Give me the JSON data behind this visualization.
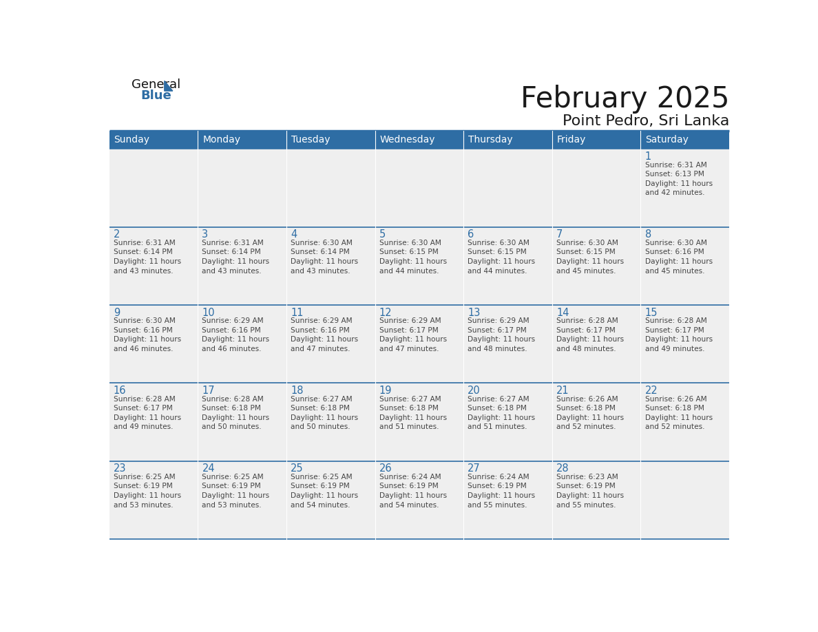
{
  "title": "February 2025",
  "subtitle": "Point Pedro, Sri Lanka",
  "header_bg_color": "#2E6DA4",
  "header_text_color": "#FFFFFF",
  "cell_bg_color": "#EFEFEF",
  "day_number_color": "#2E6DA4",
  "text_color": "#444444",
  "sep_line_color": "#2E6DA4",
  "days_of_week": [
    "Sunday",
    "Monday",
    "Tuesday",
    "Wednesday",
    "Thursday",
    "Friday",
    "Saturday"
  ],
  "calendar_data": [
    [
      null,
      null,
      null,
      null,
      null,
      null,
      {
        "day": 1,
        "sunrise": "6:31 AM",
        "sunset": "6:13 PM",
        "daylight": "11 hours\nand 42 minutes."
      }
    ],
    [
      {
        "day": 2,
        "sunrise": "6:31 AM",
        "sunset": "6:14 PM",
        "daylight": "11 hours\nand 43 minutes."
      },
      {
        "day": 3,
        "sunrise": "6:31 AM",
        "sunset": "6:14 PM",
        "daylight": "11 hours\nand 43 minutes."
      },
      {
        "day": 4,
        "sunrise": "6:30 AM",
        "sunset": "6:14 PM",
        "daylight": "11 hours\nand 43 minutes."
      },
      {
        "day": 5,
        "sunrise": "6:30 AM",
        "sunset": "6:15 PM",
        "daylight": "11 hours\nand 44 minutes."
      },
      {
        "day": 6,
        "sunrise": "6:30 AM",
        "sunset": "6:15 PM",
        "daylight": "11 hours\nand 44 minutes."
      },
      {
        "day": 7,
        "sunrise": "6:30 AM",
        "sunset": "6:15 PM",
        "daylight": "11 hours\nand 45 minutes."
      },
      {
        "day": 8,
        "sunrise": "6:30 AM",
        "sunset": "6:16 PM",
        "daylight": "11 hours\nand 45 minutes."
      }
    ],
    [
      {
        "day": 9,
        "sunrise": "6:30 AM",
        "sunset": "6:16 PM",
        "daylight": "11 hours\nand 46 minutes."
      },
      {
        "day": 10,
        "sunrise": "6:29 AM",
        "sunset": "6:16 PM",
        "daylight": "11 hours\nand 46 minutes."
      },
      {
        "day": 11,
        "sunrise": "6:29 AM",
        "sunset": "6:16 PM",
        "daylight": "11 hours\nand 47 minutes."
      },
      {
        "day": 12,
        "sunrise": "6:29 AM",
        "sunset": "6:17 PM",
        "daylight": "11 hours\nand 47 minutes."
      },
      {
        "day": 13,
        "sunrise": "6:29 AM",
        "sunset": "6:17 PM",
        "daylight": "11 hours\nand 48 minutes."
      },
      {
        "day": 14,
        "sunrise": "6:28 AM",
        "sunset": "6:17 PM",
        "daylight": "11 hours\nand 48 minutes."
      },
      {
        "day": 15,
        "sunrise": "6:28 AM",
        "sunset": "6:17 PM",
        "daylight": "11 hours\nand 49 minutes."
      }
    ],
    [
      {
        "day": 16,
        "sunrise": "6:28 AM",
        "sunset": "6:17 PM",
        "daylight": "11 hours\nand 49 minutes."
      },
      {
        "day": 17,
        "sunrise": "6:28 AM",
        "sunset": "6:18 PM",
        "daylight": "11 hours\nand 50 minutes."
      },
      {
        "day": 18,
        "sunrise": "6:27 AM",
        "sunset": "6:18 PM",
        "daylight": "11 hours\nand 50 minutes."
      },
      {
        "day": 19,
        "sunrise": "6:27 AM",
        "sunset": "6:18 PM",
        "daylight": "11 hours\nand 51 minutes."
      },
      {
        "day": 20,
        "sunrise": "6:27 AM",
        "sunset": "6:18 PM",
        "daylight": "11 hours\nand 51 minutes."
      },
      {
        "day": 21,
        "sunrise": "6:26 AM",
        "sunset": "6:18 PM",
        "daylight": "11 hours\nand 52 minutes."
      },
      {
        "day": 22,
        "sunrise": "6:26 AM",
        "sunset": "6:18 PM",
        "daylight": "11 hours\nand 52 minutes."
      }
    ],
    [
      {
        "day": 23,
        "sunrise": "6:25 AM",
        "sunset": "6:19 PM",
        "daylight": "11 hours\nand 53 minutes."
      },
      {
        "day": 24,
        "sunrise": "6:25 AM",
        "sunset": "6:19 PM",
        "daylight": "11 hours\nand 53 minutes."
      },
      {
        "day": 25,
        "sunrise": "6:25 AM",
        "sunset": "6:19 PM",
        "daylight": "11 hours\nand 54 minutes."
      },
      {
        "day": 26,
        "sunrise": "6:24 AM",
        "sunset": "6:19 PM",
        "daylight": "11 hours\nand 54 minutes."
      },
      {
        "day": 27,
        "sunrise": "6:24 AM",
        "sunset": "6:19 PM",
        "daylight": "11 hours\nand 55 minutes."
      },
      {
        "day": 28,
        "sunrise": "6:23 AM",
        "sunset": "6:19 PM",
        "daylight": "11 hours\nand 55 minutes."
      },
      null
    ]
  ],
  "logo_text1": "General",
  "logo_text2": "Blue",
  "logo_triangle_color": "#2E6DA4",
  "fig_width": 11.88,
  "fig_height": 9.18,
  "dpi": 100
}
